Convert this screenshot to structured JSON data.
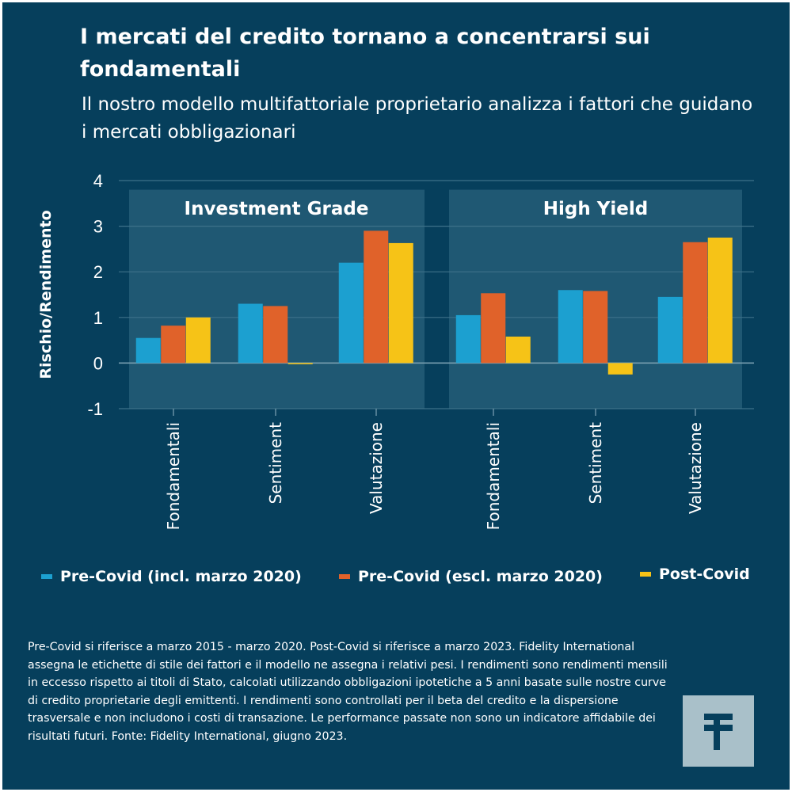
{
  "header": {
    "title": "I mercati del credito tornano a concentrarsi sui fondamentali",
    "subtitle": "Il nostro modello multifattoriale proprietario analizza i fattori che guidano i mercati obbligazionari"
  },
  "chart_data": {
    "type": "bar",
    "ylabel": "Rischio/Rendimento",
    "ylim": [
      -1,
      4
    ],
    "yticks": [
      4,
      3,
      2,
      1,
      0,
      -1
    ],
    "grid": true,
    "panels": [
      {
        "name": "Investment Grade",
        "categories": [
          "Fondamentali",
          "Sentiment",
          "Valutazione"
        ],
        "series": [
          {
            "name": "Pre-Covid (incl. marzo 2020)",
            "values": [
              0.55,
              1.3,
              2.2
            ]
          },
          {
            "name": "Pre-Covid (escl. marzo 2020)",
            "values": [
              0.82,
              1.25,
              2.9
            ]
          },
          {
            "name": "Post-Covid",
            "values": [
              1.0,
              -0.02,
              2.63
            ]
          }
        ]
      },
      {
        "name": "High Yield",
        "categories": [
          "Fondamentali",
          "Sentiment",
          "Valutazione"
        ],
        "series": [
          {
            "name": "Pre-Covid (incl. marzo 2020)",
            "values": [
              1.05,
              1.6,
              1.45
            ]
          },
          {
            "name": "Pre-Covid (escl. marzo 2020)",
            "values": [
              1.53,
              1.58,
              2.65
            ]
          },
          {
            "name": "Post-Covid",
            "values": [
              0.58,
              -0.25,
              2.75
            ]
          }
        ]
      }
    ],
    "legend": {
      "placement": "bottom"
    }
  },
  "colors": {
    "background": "#063f5c",
    "panel": "#1f5873",
    "pre_covid_incl": "#1ca0d0",
    "pre_covid_escl": "#e0622a",
    "post_covid": "#f6c317",
    "logo_bg": "#a9c0c9",
    "logo_fg": "#063f5c"
  },
  "legend_labels": [
    "Pre-Covid (incl. marzo 2020)",
    "Pre-Covid (escl. marzo 2020)",
    "Post-Covid"
  ],
  "footnote": "Pre-Covid si riferisce a marzo 2015 - marzo 2020. Post-Covid si riferisce a marzo 2023. Fidelity International assegna le etichette di stile dei fattori e il modello ne assegna i relativi pesi. I rendimenti sono rendimenti mensili in eccesso rispetto ai titoli di Stato, calcolati utilizzando obbligazioni ipotetiche a 5 anni basate sulle nostre curve di credito proprietarie degli emittenti. I rendimenti sono controllati per il beta del credito e la dispersione trasversale e non includono i costi di transazione. Le performance passate non sono un indicatore affidabile dei risultati futuri. Fonte: Fidelity International, giugno 2023.",
  "logo": {
    "icon": "fidelity-logo-icon"
  }
}
